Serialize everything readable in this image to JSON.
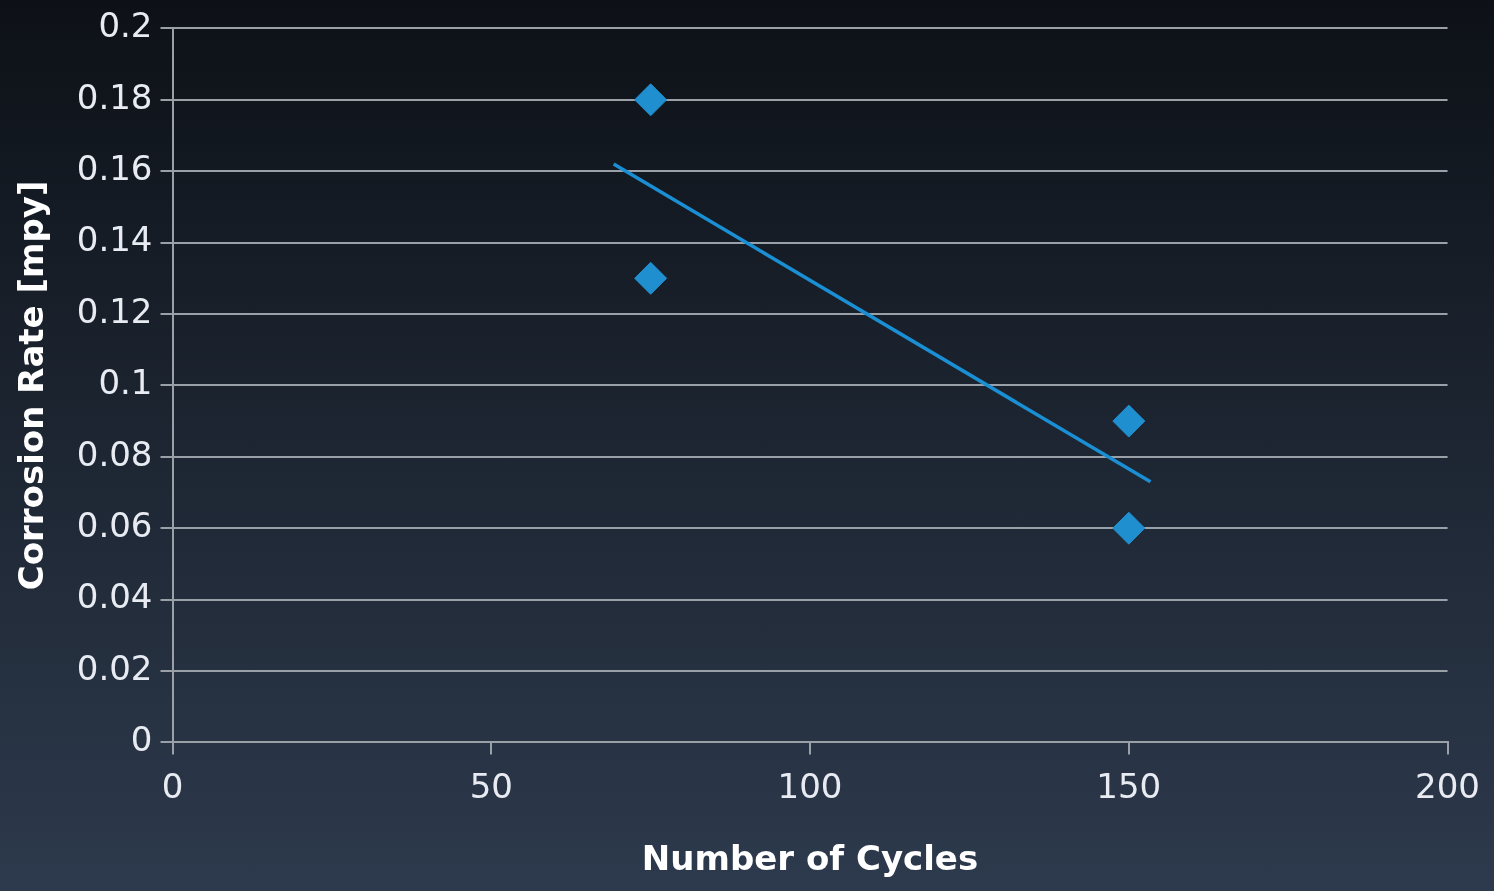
{
  "chart_data": {
    "type": "scatter",
    "xlabel": "Number of Cycles",
    "ylabel": "Corrosion Rate [mpy]",
    "xlim": [
      0,
      200
    ],
    "xticks": [
      0,
      50,
      100,
      150,
      200
    ],
    "ylim": [
      0,
      0.2
    ],
    "yticks": [
      0,
      0.02,
      0.04,
      0.06,
      0.08,
      0.1,
      0.12,
      0.14,
      0.16,
      0.18,
      0.2
    ],
    "grid": "y",
    "marker": "diamond",
    "series": [
      {
        "color": "#1f8fd0",
        "x": [
          75,
          75,
          150,
          150
        ],
        "values": [
          0.18,
          0.13,
          0.09,
          0.06
        ]
      },
      {
        "type": "line",
        "color": "#1a8fd4",
        "x": [
          69.2,
          153.4
        ],
        "values": [
          0.162,
          0.073
        ],
        "marker": "none"
      }
    ]
  }
}
